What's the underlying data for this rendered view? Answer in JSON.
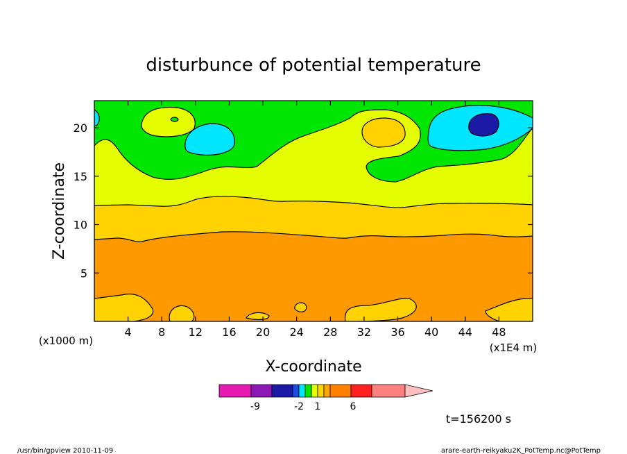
{
  "chart_data": {
    "type": "heatmap",
    "title": "disturbunce of potential temperature",
    "xlabel": "X-coordinate",
    "ylabel": "Z-coordinate",
    "x_unit_left": "(x1000 m)",
    "x_unit_right": "(x1E4 m)",
    "xlim": [
      0,
      52
    ],
    "ylim": [
      0,
      22.8
    ],
    "x_ticks": [
      4,
      8,
      12,
      16,
      20,
      24,
      28,
      32,
      36,
      40,
      44,
      48
    ],
    "y_ticks": [
      5,
      10,
      15,
      20
    ],
    "time_label": "t=156200 s",
    "colorbar": {
      "colors": [
        "#e61ab3",
        "#8c19b3",
        "#1a1aa6",
        "#1a4ce6",
        "#00e6ff",
        "#00e600",
        "#e6ff00",
        "#ffd700",
        "#ffa500",
        "#ff7f00",
        "#ff2020",
        "#ff8080",
        "#ffbfbf"
      ],
      "tick_labels": [
        "-9",
        "-2",
        "1",
        "6"
      ]
    },
    "bands": [
      {
        "name": "orange",
        "color": "#ff9900",
        "z_range": [
          0,
          9
        ]
      },
      {
        "name": "gold",
        "color": "#ffd200",
        "z_range": [
          9,
          12.3
        ]
      },
      {
        "name": "yellow",
        "color": "#e6ff00",
        "z_range": [
          12.3,
          17
        ]
      },
      {
        "name": "green",
        "color": "#00e600",
        "z_range": [
          17,
          22.8
        ]
      }
    ],
    "blobs": [
      {
        "color": "#00e6ff",
        "center": [
          14,
          19.5
        ]
      },
      {
        "color": "#00e6ff",
        "center": [
          46.5,
          20.3
        ]
      },
      {
        "color": "#1a1aa6",
        "center": [
          46,
          20.3
        ]
      },
      {
        "color": "#ffd200",
        "center": [
          34,
          19.6
        ]
      },
      {
        "color": "#e6ff00",
        "center": [
          9,
          20.8
        ]
      }
    ]
  },
  "footer": {
    "left": "/usr/bin/gpview  2010-11-09",
    "right": "arare-earth-reikyaku2K_PotTemp.nc@PotTemp"
  }
}
